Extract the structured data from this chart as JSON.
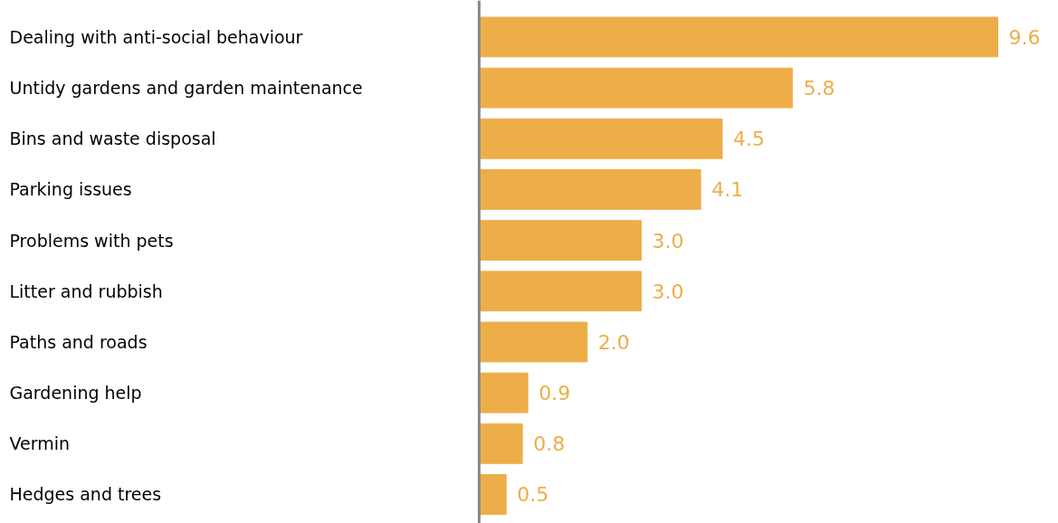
{
  "chart_data": {
    "type": "bar",
    "orientation": "horizontal",
    "value_labels": [
      "9.6",
      "5.8",
      "4.5",
      "4.1",
      "3.0",
      "3.0",
      "2.0",
      "0.9",
      "0.8",
      "0.5"
    ],
    "categories": [
      "Dealing with anti-social behaviour",
      "Untidy gardens and garden maintenance",
      "Bins and waste disposal",
      "Parking issues",
      "Problems with pets",
      "Litter and rubbish",
      "Paths and roads",
      "Gardening help",
      "Vermin",
      "Hedges and trees"
    ],
    "values": [
      9.6,
      5.8,
      4.5,
      4.1,
      3.0,
      3.0,
      2.0,
      0.9,
      0.8,
      0.5
    ],
    "color": "#edae49"
  }
}
